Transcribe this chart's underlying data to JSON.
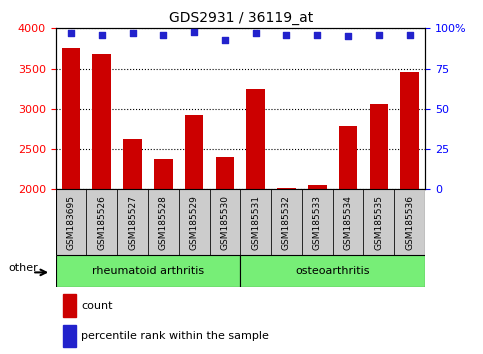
{
  "title": "GDS2931 / 36119_at",
  "categories": [
    "GSM183695",
    "GSM185526",
    "GSM185527",
    "GSM185528",
    "GSM185529",
    "GSM185530",
    "GSM185531",
    "GSM185532",
    "GSM185533",
    "GSM185534",
    "GSM185535",
    "GSM185536"
  ],
  "counts": [
    3750,
    3680,
    2620,
    2380,
    2920,
    2400,
    3250,
    2020,
    2060,
    2790,
    3060,
    3460
  ],
  "percentiles": [
    97,
    96,
    97,
    96,
    98,
    93,
    97,
    96,
    96,
    95,
    96,
    96
  ],
  "ylim_left": [
    2000,
    4000
  ],
  "ylim_right": [
    0,
    100
  ],
  "yticks_left": [
    2000,
    2500,
    3000,
    3500,
    4000
  ],
  "yticks_right": [
    0,
    25,
    50,
    75,
    100
  ],
  "bar_color": "#cc0000",
  "dot_color": "#2222cc",
  "group1_label": "rheumatoid arthritis",
  "group2_label": "osteoarthritis",
  "group1_count": 6,
  "group2_count": 6,
  "group_bg": "#77ee77",
  "sample_bg": "#cccccc",
  "legend_count": "count",
  "legend_pct": "percentile rank within the sample",
  "other_label": "other"
}
